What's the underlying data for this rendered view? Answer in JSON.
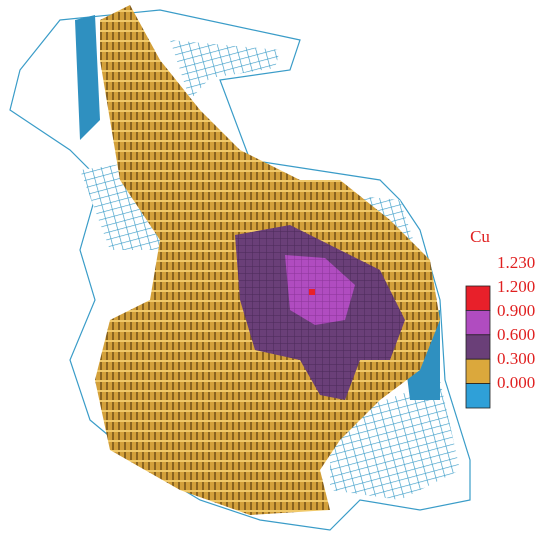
{
  "legend": {
    "title": "Cu",
    "labels": [
      "1.230",
      "1.200",
      "0.900",
      "0.600",
      "0.300",
      "0.000"
    ],
    "colors": [
      "#e8202a",
      "#b04cc0",
      "#6a3f78",
      "#dba83c",
      "#2fa0d8"
    ]
  }
}
